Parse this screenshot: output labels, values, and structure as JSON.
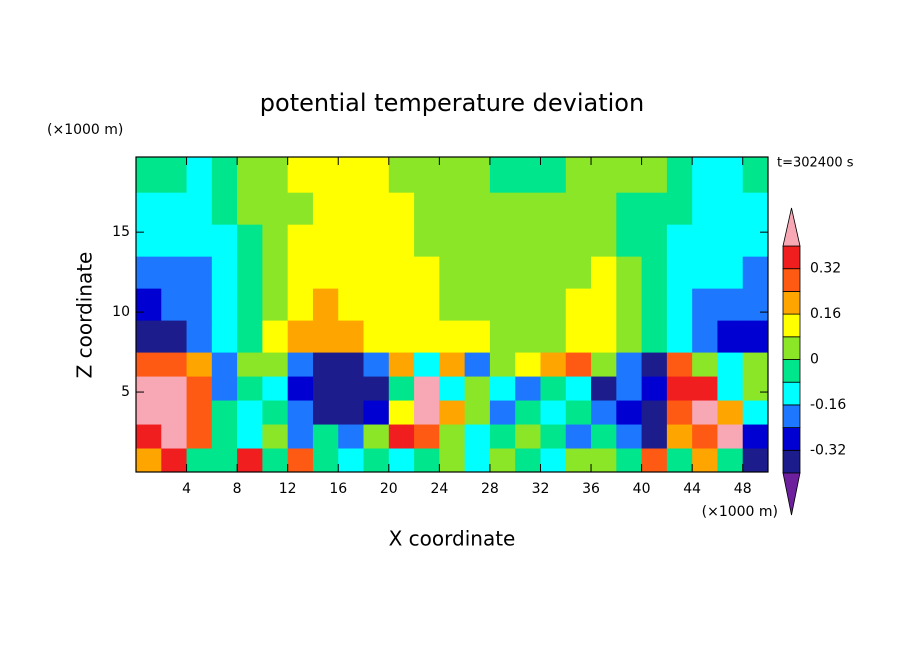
{
  "chart_data": {
    "type": "contour",
    "title": "potential temperature deviation",
    "subtitle": "t=302400 s",
    "x_label": "X coordinate",
    "y_label": "Z coordinate",
    "x_units": "(×1000 m)",
    "y_units": "(×1000 m)",
    "xlim": [
      0,
      50
    ],
    "ylim": [
      0,
      19.7
    ],
    "xticks": [
      4,
      8,
      12,
      16,
      20,
      24,
      28,
      32,
      36,
      40,
      44,
      48
    ],
    "yticks": [
      5,
      10,
      15
    ],
    "xbins": [
      0,
      2,
      4,
      6,
      8,
      10,
      12,
      14,
      16,
      18,
      20,
      22,
      24,
      26,
      28,
      30,
      32,
      34,
      36,
      38,
      40,
      42,
      44,
      46,
      48,
      50
    ],
    "ybins": [
      0,
      1.5,
      3,
      4.5,
      6,
      7.5,
      9.5,
      11.5,
      13.5,
      15.5,
      17.5,
      19.7
    ],
    "z": [
      [
        0.2,
        0.36,
        -0.04,
        -0.04,
        0.36,
        -0.04,
        0.3,
        -0.04,
        -0.12,
        -0.04,
        -0.12,
        -0.04,
        0.04,
        -0.12,
        0.04,
        -0.04,
        -0.12,
        0.04,
        0.04,
        -0.04,
        0.3,
        -0.04,
        0.2,
        -0.04,
        -0.36
      ],
      [
        0.36,
        0.44,
        0.3,
        -0.04,
        -0.12,
        0.04,
        -0.2,
        -0.04,
        -0.2,
        0.04,
        0.36,
        0.3,
        0.04,
        -0.12,
        -0.04,
        0.04,
        -0.04,
        -0.2,
        -0.04,
        -0.2,
        -0.36,
        0.2,
        0.3,
        0.44,
        -0.28
      ],
      [
        0.44,
        0.44,
        0.3,
        -0.04,
        -0.12,
        -0.04,
        -0.2,
        -0.36,
        -0.36,
        -0.28,
        0.12,
        0.44,
        0.2,
        0.04,
        -0.2,
        -0.04,
        -0.12,
        -0.04,
        -0.2,
        -0.28,
        -0.36,
        0.3,
        0.44,
        0.2,
        -0.12
      ],
      [
        0.44,
        0.44,
        0.3,
        -0.2,
        -0.04,
        -0.12,
        -0.28,
        -0.36,
        -0.36,
        -0.36,
        -0.04,
        0.44,
        -0.12,
        0.04,
        -0.12,
        -0.2,
        -0.04,
        -0.12,
        -0.36,
        -0.2,
        -0.28,
        0.36,
        0.36,
        -0.12,
        0.04
      ],
      [
        0.3,
        0.3,
        0.2,
        -0.2,
        0.04,
        0.04,
        -0.2,
        -0.36,
        -0.36,
        -0.2,
        0.2,
        -0.12,
        0.2,
        -0.2,
        0.04,
        0.12,
        0.2,
        0.3,
        0.04,
        -0.2,
        -0.36,
        0.3,
        0.04,
        -0.12,
        0.04
      ],
      [
        -0.36,
        -0.36,
        -0.2,
        -0.12,
        -0.04,
        0.12,
        0.2,
        0.2,
        0.2,
        0.12,
        0.12,
        0.12,
        0.12,
        0.12,
        0.04,
        0.04,
        0.04,
        0.12,
        0.12,
        0.04,
        -0.04,
        -0.12,
        -0.2,
        -0.28,
        -0.28
      ],
      [
        -0.28,
        -0.2,
        -0.2,
        -0.12,
        -0.04,
        0.04,
        0.12,
        0.2,
        0.12,
        0.12,
        0.12,
        0.12,
        0.04,
        0.04,
        0.04,
        0.04,
        0.04,
        0.12,
        0.12,
        0.04,
        -0.04,
        -0.12,
        -0.2,
        -0.2,
        -0.2
      ],
      [
        -0.2,
        -0.2,
        -0.2,
        -0.12,
        -0.04,
        0.04,
        0.12,
        0.12,
        0.12,
        0.12,
        0.12,
        0.12,
        0.04,
        0.04,
        0.04,
        0.04,
        0.04,
        0.04,
        0.12,
        0.04,
        -0.04,
        -0.12,
        -0.12,
        -0.12,
        -0.2
      ],
      [
        -0.12,
        -0.12,
        -0.12,
        -0.12,
        -0.04,
        0.04,
        0.12,
        0.12,
        0.12,
        0.12,
        0.12,
        0.04,
        0.04,
        0.04,
        0.04,
        0.04,
        0.04,
        0.04,
        0.04,
        -0.04,
        -0.04,
        -0.12,
        -0.12,
        -0.12,
        -0.12
      ],
      [
        -0.12,
        -0.12,
        -0.12,
        -0.04,
        0.04,
        0.04,
        0.04,
        0.12,
        0.12,
        0.12,
        0.12,
        0.04,
        0.04,
        0.04,
        0.04,
        0.04,
        0.04,
        0.04,
        0.04,
        -0.04,
        -0.04,
        -0.04,
        -0.12,
        -0.12,
        -0.12
      ],
      [
        -0.04,
        -0.04,
        -0.1,
        -0.04,
        0.04,
        0.04,
        0.1,
        0.12,
        0.12,
        0.1,
        0.04,
        0.04,
        0.04,
        0.04,
        -0.04,
        -0.04,
        -0.04,
        0.04,
        0.04,
        0.04,
        0.04,
        -0.04,
        -0.1,
        -0.1,
        -0.04
      ]
    ],
    "levels": [
      -0.4,
      -0.32,
      -0.24,
      -0.16,
      -0.08,
      0,
      0.08,
      0.16,
      0.24,
      0.32,
      0.4
    ],
    "colors": [
      "#6e1f9e",
      "#1c1c8c",
      "#0000d2",
      "#1e78ff",
      "#00ffff",
      "#00e68c",
      "#8ce628",
      "#ffff00",
      "#ffa500",
      "#ff5a14",
      "#f01e1e",
      "#f7a8b4"
    ],
    "colorbar_ticks": [
      0.32,
      0.16,
      0,
      -0.16,
      -0.32
    ]
  }
}
